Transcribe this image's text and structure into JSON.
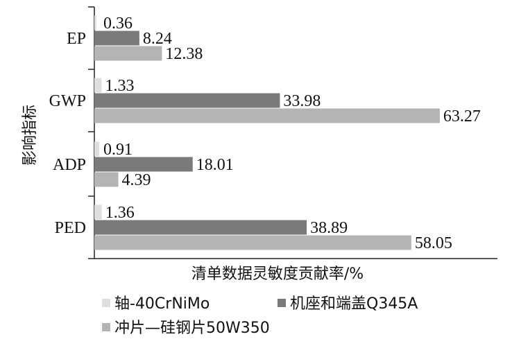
{
  "chart_data": {
    "type": "bar",
    "orientation": "horizontal",
    "categories": [
      "EP",
      "GWP",
      "ADP",
      "PED"
    ],
    "series": [
      {
        "name": "轴-40CrNiMo",
        "color": "#dedede",
        "values": [
          0.36,
          1.33,
          0.91,
          1.36
        ]
      },
      {
        "name": "机座和端盖Q345A",
        "color": "#7a7a7a",
        "values": [
          8.24,
          33.98,
          18.01,
          38.89
        ]
      },
      {
        "name": "冲片—硅钢片50W350",
        "color": "#b4b4b4",
        "values": [
          12.38,
          63.27,
          4.39,
          58.05
        ]
      }
    ],
    "data_labels": [
      [
        "0.36",
        "1.33",
        "0.91",
        "1.36"
      ],
      [
        "8.24",
        "33.98",
        "18.01",
        "38.89"
      ],
      [
        "12.38",
        "63.27",
        "4.39",
        "58.05"
      ]
    ],
    "xlabel": "清单数据灵敏度贡献率/%",
    "ylabel": "影响指标",
    "xlim": [
      0,
      100
    ],
    "grid": false,
    "legend_position": "bottom"
  }
}
